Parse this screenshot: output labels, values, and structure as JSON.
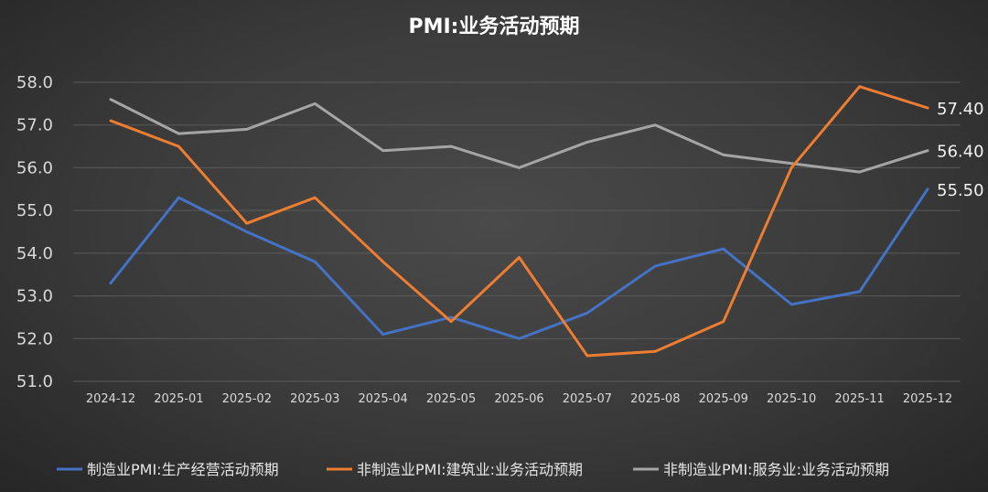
{
  "chart_data": {
    "type": "line",
    "title": "PMI:业务活动预期",
    "categories": [
      "2024-12",
      "2025-01",
      "2025-02",
      "2025-03",
      "2025-04",
      "2025-05",
      "2025-06",
      "2025-07",
      "2025-08",
      "2025-09",
      "2025-10",
      "2025-11",
      "2025-12"
    ],
    "ylim": [
      51.0,
      58.0
    ],
    "yticks": [
      "51.0",
      "52.0",
      "53.0",
      "54.0",
      "55.0",
      "56.0",
      "57.0",
      "58.0"
    ],
    "grid": true,
    "legend_position": "bottom",
    "series": [
      {
        "name": "制造业PMI:生产经营活动预期",
        "color": "#4472c4",
        "values": [
          53.3,
          55.3,
          54.5,
          53.8,
          52.1,
          52.5,
          52.0,
          52.6,
          53.7,
          54.1,
          52.8,
          53.1,
          55.5
        ],
        "end_label": "55.50"
      },
      {
        "name": "非制造业PMI:建筑业:业务活动预期",
        "color": "#ed7d31",
        "values": [
          57.1,
          56.5,
          54.7,
          55.3,
          53.8,
          52.4,
          53.9,
          51.6,
          51.7,
          52.4,
          56.0,
          57.9,
          57.4
        ],
        "end_label": "57.40"
      },
      {
        "name": "非制造业PMI:服务业:业务活动预期",
        "color": "#a5a5a5",
        "values": [
          57.6,
          56.8,
          56.9,
          57.5,
          56.4,
          56.5,
          56.0,
          56.6,
          57.0,
          56.3,
          56.1,
          55.9,
          56.4
        ],
        "end_label": "56.40"
      }
    ]
  }
}
